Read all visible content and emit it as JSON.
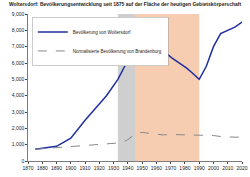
{
  "chart_data": {
    "type": "line",
    "title": "Woltersdorf: Bevölkerungsentwicklung seit 1875 auf der Fläche der heutigen Gebietskörperschaft",
    "x": [
      1875,
      1890,
      1900,
      1910,
      1925,
      1933,
      1939,
      1946,
      1950,
      1964,
      1971,
      1981,
      1985,
      1989,
      1990,
      1995,
      2000,
      2005,
      2010,
      2015,
      2020
    ],
    "series": [
      {
        "name": "Bevölkerung von Woltersdorf",
        "color": "#1f2f9f",
        "line_style": "solid",
        "values": [
          718,
          900,
          1400,
          2500,
          4000,
          5000,
          6000,
          7000,
          7200,
          6800,
          6300,
          5700,
          5400,
          5100,
          5000,
          5800,
          7000,
          7800,
          8000,
          8200,
          8500
        ]
      },
      {
        "name": "Normalisierte Bevölkerung von Brandenburg",
        "color": "#888888",
        "line_style": "dash",
        "values": [
          718,
          800,
          870,
          950,
          1050,
          1100,
          1250,
          1700,
          1750,
          1600,
          1620,
          1600,
          1600,
          1580,
          1550,
          1540,
          1560,
          1500,
          1470,
          1460,
          1460
        ]
      }
    ],
    "shaded_periods": [
      {
        "from": 1933,
        "to": 1945,
        "color": "#cfcfcf"
      },
      {
        "from": 1945,
        "to": 1990,
        "color": "#f6cdb0"
      }
    ],
    "xlim": [
      1870,
      2020
    ],
    "xticks": [
      1870,
      1880,
      1890,
      1900,
      1910,
      1920,
      1930,
      1940,
      1950,
      1960,
      1970,
      1980,
      1990,
      2000,
      2010,
      2020
    ],
    "ylim": [
      0,
      9000
    ],
    "yticks": [
      0,
      {
        "value": 1000,
        "label": "1,000"
      },
      {
        "value": 2000,
        "label": "2,000"
      },
      {
        "value": 3000,
        "label": "3,000"
      },
      {
        "value": 4000,
        "label": "4,000"
      },
      {
        "value": 5000,
        "label": "5,000"
      },
      {
        "value": 6000,
        "label": "6,000"
      },
      {
        "value": 7000,
        "label": "7,000"
      },
      {
        "value": 8000,
        "label": "8,000"
      },
      {
        "value": 9000,
        "label": "9,000"
      }
    ],
    "grid": false,
    "legend": "top-left"
  }
}
